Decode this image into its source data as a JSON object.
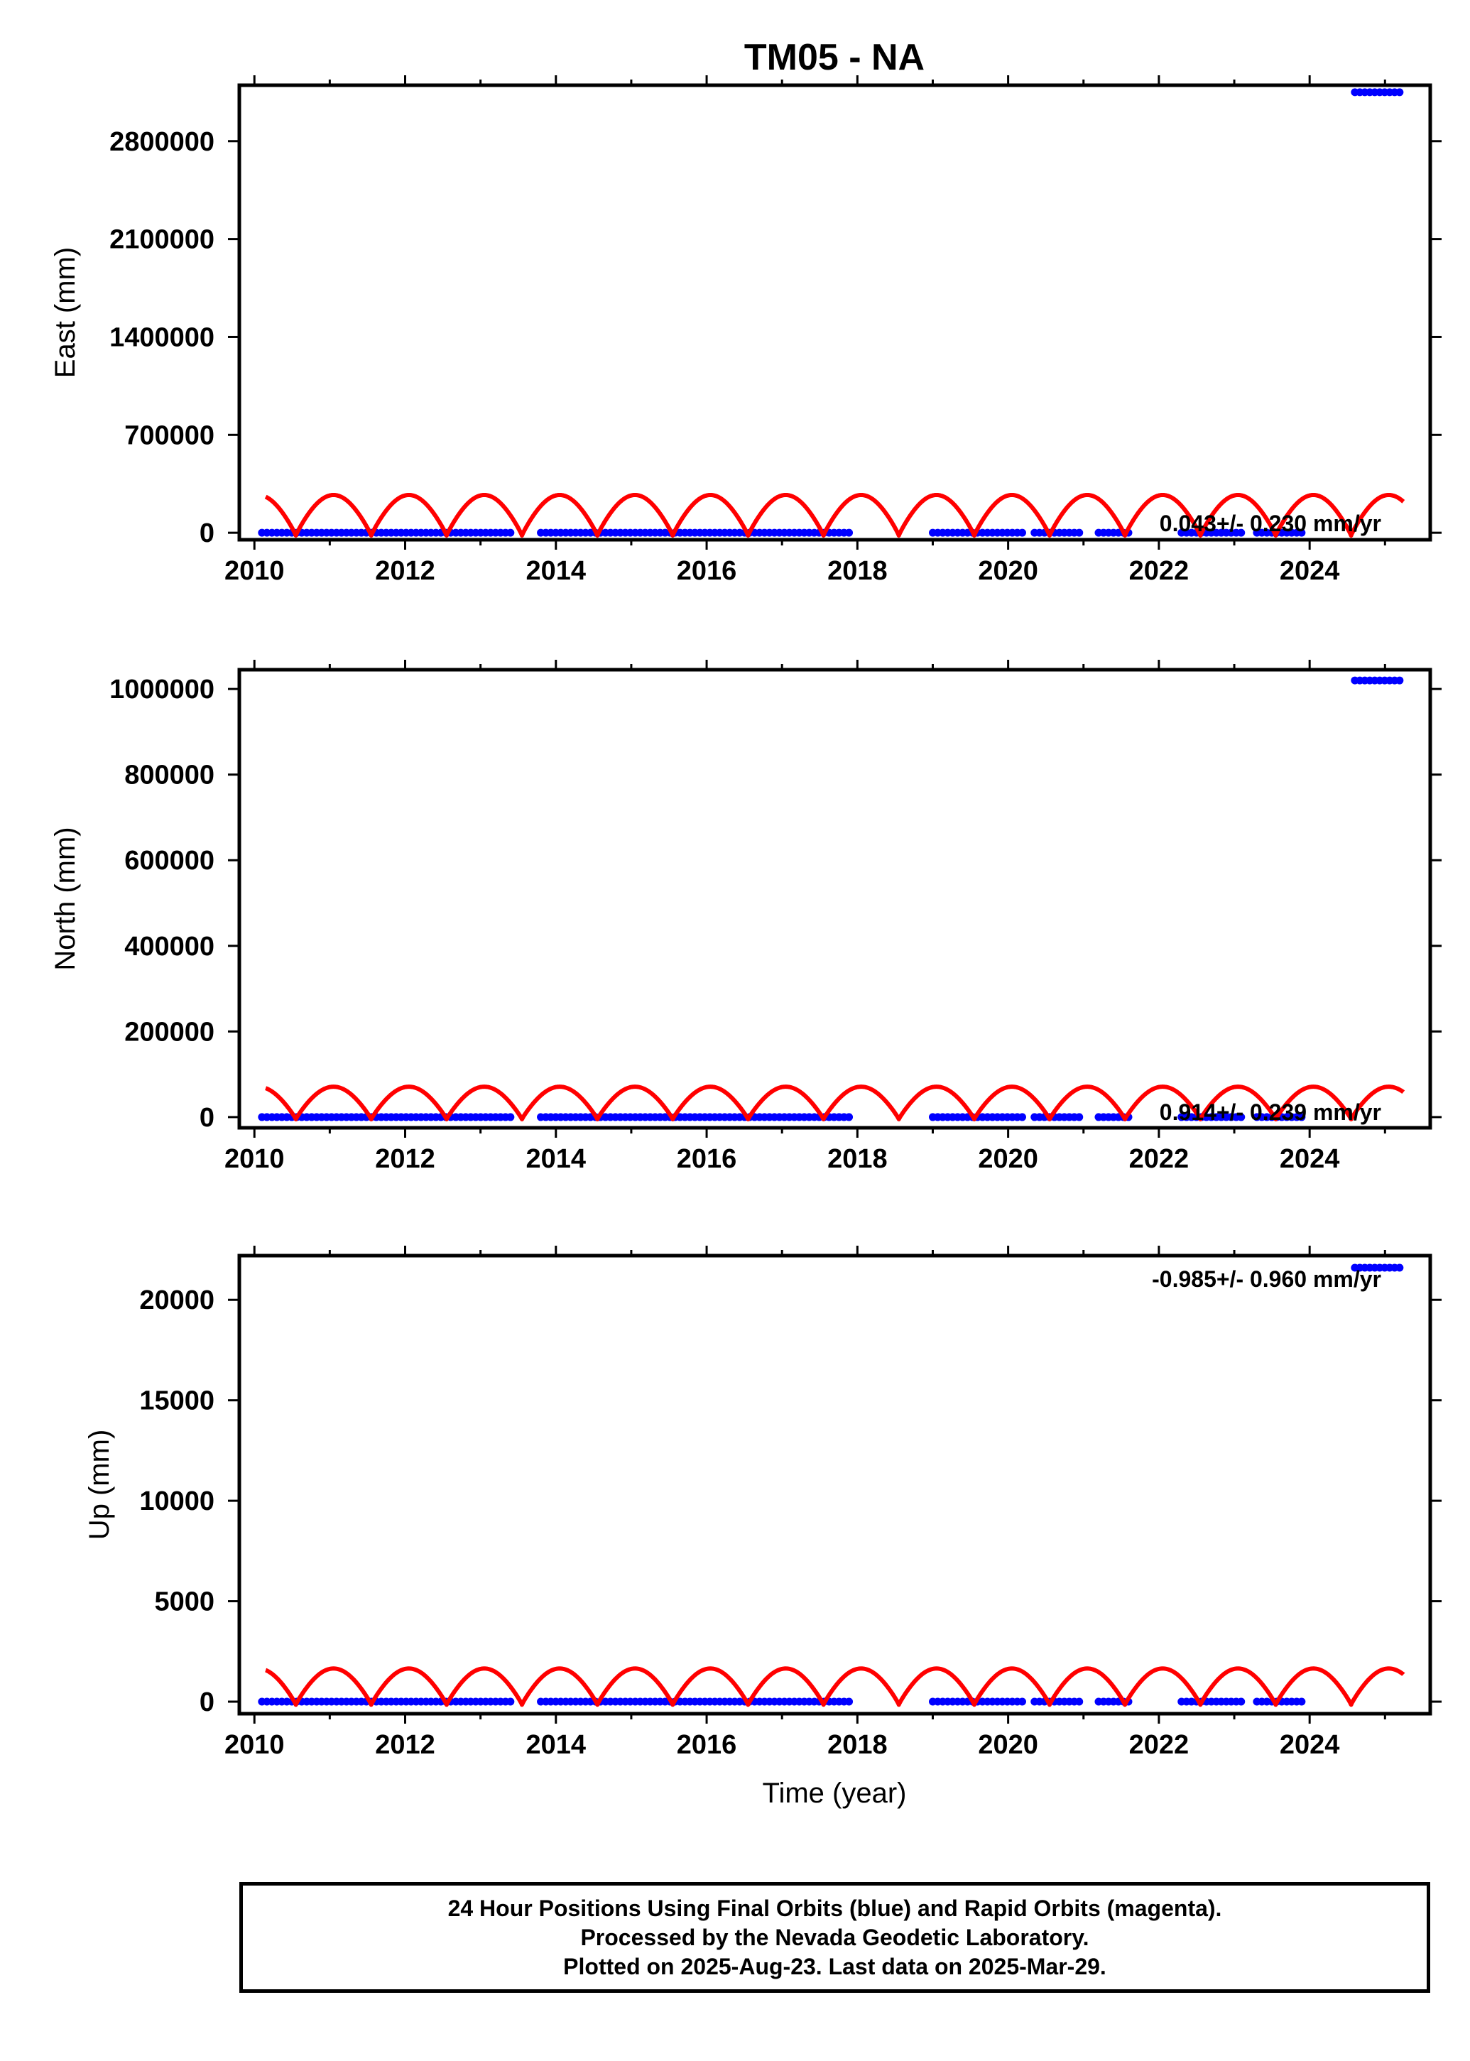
{
  "title": "TM05 - NA",
  "xlabel": "Time (year)",
  "colors": {
    "final_orbits": "#0000ff",
    "model": "#ff0000",
    "frame": "#000000"
  },
  "chart_data": [
    {
      "type": "scatter",
      "panel": "east",
      "ylabel": "East (mm)",
      "xlim": [
        2009.8,
        2025.6
      ],
      "ylim": [
        -50000,
        3200000
      ],
      "xticks": [
        2010,
        2012,
        2014,
        2016,
        2018,
        2020,
        2022,
        2024
      ],
      "xtick_labels": [
        "2010",
        "2012",
        "2014",
        "2016",
        "2018",
        "2020",
        "2022",
        "2024"
      ],
      "yticks": [
        0,
        700000,
        1400000,
        2100000,
        2800000
      ],
      "ytick_labels": [
        "0",
        "700000",
        "1400000",
        "2100000",
        "2800000"
      ],
      "rate_text": "0.043+/- 0.230 mm/yr",
      "data_segments": [
        {
          "x": [
            2010.1,
            2013.4
          ],
          "y": 0
        },
        {
          "x": [
            2013.8,
            2017.9
          ],
          "y": 0
        },
        {
          "x": [
            2019.0,
            2020.25
          ],
          "y": 0
        },
        {
          "x": [
            2020.35,
            2021.0
          ],
          "y": 0
        },
        {
          "x": [
            2021.2,
            2021.6
          ],
          "y": 0
        },
        {
          "x": [
            2022.3,
            2023.1
          ],
          "y": 0
        },
        {
          "x": [
            2023.3,
            2023.9
          ],
          "y": 0
        },
        {
          "x": [
            2024.6,
            2025.25
          ],
          "y": 3150000
        }
      ],
      "model": {
        "offset": 125000,
        "amplitude": 145000,
        "x_start": 2010.15,
        "x_end": 2025.25
      }
    },
    {
      "type": "scatter",
      "panel": "north",
      "ylabel": "North (mm)",
      "xlim": [
        2009.8,
        2025.6
      ],
      "ylim": [
        -25000,
        1045000
      ],
      "xticks": [
        2010,
        2012,
        2014,
        2016,
        2018,
        2020,
        2022,
        2024
      ],
      "xtick_labels": [
        "2010",
        "2012",
        "2014",
        "2016",
        "2018",
        "2020",
        "2022",
        "2024"
      ],
      "yticks": [
        0,
        200000,
        400000,
        600000,
        800000,
        1000000
      ],
      "ytick_labels": [
        "0",
        "200000",
        "400000",
        "600000",
        "800000",
        "1000000"
      ],
      "rate_text": "0.914+/- 0.239 mm/yr",
      "data_segments": [
        {
          "x": [
            2010.1,
            2013.4
          ],
          "y": 0
        },
        {
          "x": [
            2013.8,
            2017.9
          ],
          "y": 0
        },
        {
          "x": [
            2019.0,
            2020.25
          ],
          "y": 0
        },
        {
          "x": [
            2020.35,
            2021.0
          ],
          "y": 0
        },
        {
          "x": [
            2021.2,
            2021.6
          ],
          "y": 0
        },
        {
          "x": [
            2022.3,
            2023.1
          ],
          "y": 0
        },
        {
          "x": [
            2023.3,
            2023.9
          ],
          "y": 0
        },
        {
          "x": [
            2024.6,
            2025.25
          ],
          "y": 1020000
        }
      ],
      "model": {
        "offset": 33000,
        "amplitude": 38000,
        "x_start": 2010.15,
        "x_end": 2025.25
      }
    },
    {
      "type": "scatter",
      "panel": "up",
      "ylabel": "Up (mm)",
      "xlim": [
        2009.8,
        2025.6
      ],
      "ylim": [
        -600,
        22200
      ],
      "xticks": [
        2010,
        2012,
        2014,
        2016,
        2018,
        2020,
        2022,
        2024
      ],
      "xtick_labels": [
        "2010",
        "2012",
        "2014",
        "2016",
        "2018",
        "2020",
        "2022",
        "2024"
      ],
      "yticks": [
        0,
        5000,
        10000,
        15000,
        20000
      ],
      "ytick_labels": [
        "0",
        "5000",
        "10000",
        "15000",
        "20000"
      ],
      "rate_text": "-0.985+/- 0.960 mm/yr",
      "data_segments": [
        {
          "x": [
            2010.1,
            2013.4
          ],
          "y": 0
        },
        {
          "x": [
            2013.8,
            2017.9
          ],
          "y": 0
        },
        {
          "x": [
            2019.0,
            2020.25
          ],
          "y": 0
        },
        {
          "x": [
            2020.35,
            2021.0
          ],
          "y": 0
        },
        {
          "x": [
            2021.2,
            2021.6
          ],
          "y": 0
        },
        {
          "x": [
            2022.3,
            2023.1
          ],
          "y": 0
        },
        {
          "x": [
            2023.3,
            2023.9
          ],
          "y": 0
        },
        {
          "x": [
            2024.6,
            2025.25
          ],
          "y": 21600
        }
      ],
      "model": {
        "offset": 750,
        "amplitude": 900,
        "x_start": 2010.15,
        "x_end": 2025.25
      }
    }
  ],
  "footer": {
    "line1": "24 Hour Positions Using Final Orbits (blue) and Rapid Orbits (magenta).",
    "line2": "Processed by the Nevada Geodetic Laboratory.",
    "line3": "Plotted on 2025-Aug-23. Last data on 2025-Mar-29."
  }
}
